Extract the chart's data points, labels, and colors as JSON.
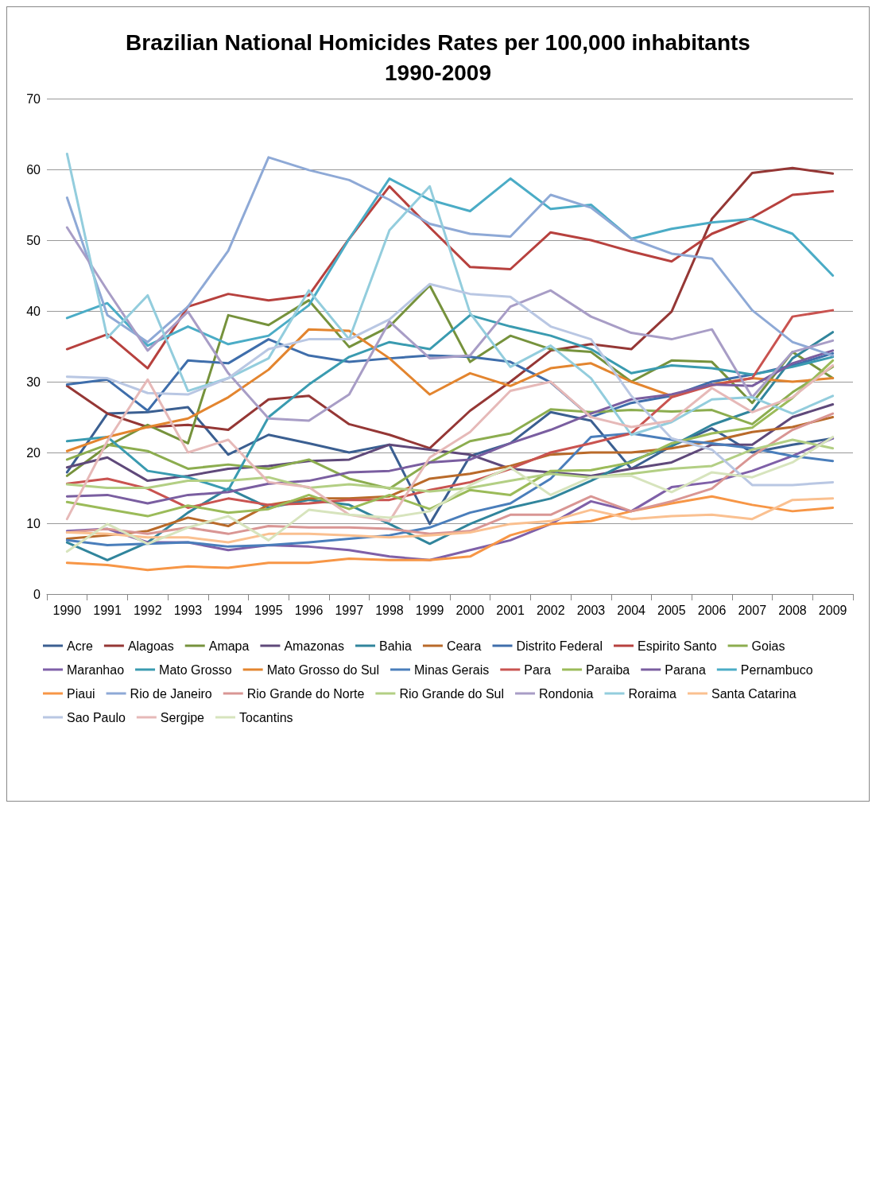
{
  "chart_data": {
    "type": "line",
    "title": "Brazilian National Homicides Rates per 100,000 inhabitants\n1990-2009",
    "categories": [
      "1990",
      "1991",
      "1992",
      "1993",
      "1994",
      "1995",
      "1996",
      "1997",
      "1998",
      "1999",
      "2000",
      "2001",
      "2002",
      "2003",
      "2004",
      "2005",
      "2006",
      "2007",
      "2008",
      "2009"
    ],
    "ylim": [
      0,
      70
    ],
    "yticks": [
      0,
      10,
      20,
      30,
      40,
      50,
      60,
      70
    ],
    "grid": "y",
    "legend": "bottom",
    "marker": "none",
    "line_style": "solid",
    "series": [
      {
        "name": "Acre",
        "color": "#3b5f91",
        "values": [
          17.2,
          25.5,
          25.7,
          26.4,
          19.7,
          22.5,
          21.3,
          20,
          21.1,
          9.9,
          19.5,
          21.3,
          25.7,
          24.5,
          17.7,
          20.9,
          23.4,
          20,
          21.1,
          22
        ]
      },
      {
        "name": "Alagoas",
        "color": "#953735",
        "values": [
          29.4,
          25.5,
          23.6,
          23.9,
          23.2,
          27.5,
          28,
          24,
          22.5,
          20.6,
          25.9,
          30,
          34.4,
          35.3,
          34.6,
          39.9,
          53,
          59.5,
          60.2,
          59.4
        ]
      },
      {
        "name": "Amapa",
        "color": "#76923c",
        "values": [
          16.7,
          20.9,
          23.9,
          21.3,
          39.4,
          38,
          41.5,
          34.9,
          37.8,
          43.6,
          32.8,
          36.5,
          34.6,
          34.2,
          30,
          33,
          32.8,
          27,
          34.2,
          30.5
        ]
      },
      {
        "name": "Amazonas",
        "color": "#5f497a",
        "values": [
          17.9,
          19.3,
          16,
          16.7,
          17.7,
          18.1,
          18.8,
          19,
          21.1,
          20.4,
          19.7,
          17.7,
          17.2,
          16.7,
          17.7,
          18.6,
          21.1,
          21.1,
          25,
          26.8
        ]
      },
      {
        "name": "Bahia",
        "color": "#31859c",
        "values": [
          7.3,
          4.8,
          7.3,
          11.5,
          14.9,
          12.2,
          13.3,
          12.6,
          9.9,
          7.1,
          9.9,
          12.2,
          13.5,
          16,
          18.8,
          20.9,
          23.9,
          25.9,
          33.3,
          37
        ]
      },
      {
        "name": "Ceara",
        "color": "#b96a2a",
        "values": [
          7.8,
          8.3,
          8.9,
          10.8,
          9.6,
          12.6,
          13.5,
          13.5,
          13.8,
          16.3,
          17,
          18.1,
          19.7,
          20,
          20,
          20.6,
          21.6,
          22.9,
          23.6,
          25
        ]
      },
      {
        "name": "Distrito Federal",
        "color": "#3f6eab",
        "values": [
          29.6,
          30.3,
          25.9,
          33,
          32.6,
          36,
          33.7,
          32.8,
          33.3,
          33.7,
          33.5,
          32.8,
          29.9,
          25,
          27,
          28,
          30,
          31,
          32.3,
          34
        ]
      },
      {
        "name": "Espirito Santo",
        "color": "#b7413e",
        "values": [
          34.6,
          36.7,
          31.9,
          40.6,
          42.4,
          41.5,
          42.2,
          50.2,
          57.6,
          51.8,
          46.2,
          45.9,
          51.1,
          50,
          48.4,
          47,
          50.9,
          53.2,
          56.4,
          56.9
        ]
      },
      {
        "name": "Goias",
        "color": "#8cad4f",
        "values": [
          19,
          21.1,
          20.2,
          17.7,
          18.3,
          17.7,
          19,
          16.3,
          14.9,
          18.6,
          21.6,
          22.7,
          26.1,
          25.7,
          26,
          25.8,
          26,
          24,
          28.5,
          32.1
        ]
      },
      {
        "name": "Maranhao",
        "color": "#7f60a8",
        "values": [
          8.9,
          9.2,
          7.3,
          7.3,
          6.2,
          6.9,
          6.7,
          6.2,
          5.3,
          4.8,
          6.2,
          7.6,
          9.9,
          13.1,
          11.7,
          15.1,
          15.8,
          17.4,
          19.5,
          22
        ]
      },
      {
        "name": "Mato Grosso",
        "color": "#3a9bb0",
        "values": [
          21.6,
          22.2,
          17.4,
          16.5,
          14.7,
          25,
          29.6,
          33.5,
          35.6,
          34.6,
          39.4,
          37.8,
          36.5,
          34.6,
          31.2,
          32.3,
          31.9,
          31,
          32.1,
          33.5
        ]
      },
      {
        "name": "Mato Grosso do Sul",
        "color": "#e3852f",
        "values": [
          20.2,
          22.2,
          23.6,
          24.8,
          27.8,
          31.7,
          37.4,
          37.2,
          33.3,
          28.2,
          31.2,
          29.4,
          31.9,
          32.6,
          30,
          28,
          29.6,
          30.5,
          30,
          30.5
        ]
      },
      {
        "name": "Minas Gerais",
        "color": "#4a7ebb",
        "values": [
          7.6,
          6.9,
          7.1,
          7.3,
          6.7,
          6.9,
          7.3,
          7.8,
          8.3,
          9.4,
          11.5,
          12.8,
          16.3,
          22.2,
          22.7,
          21.8,
          21.3,
          20.6,
          19.5,
          18.8
        ]
      },
      {
        "name": "Para",
        "color": "#c95350",
        "values": [
          15.6,
          16.3,
          14.9,
          12.2,
          13.5,
          12.6,
          12.8,
          13.3,
          13.3,
          14.7,
          15.8,
          17.7,
          20,
          21.3,
          22.7,
          27.8,
          29.5,
          30.5,
          39.2,
          40.1
        ]
      },
      {
        "name": "Paraiba",
        "color": "#9bbb59",
        "values": [
          13,
          12,
          11,
          12.5,
          11.5,
          12,
          14,
          12,
          14,
          12,
          14.7,
          14,
          17.4,
          17.5,
          18.6,
          21.3,
          22.7,
          23.5,
          27.7,
          33
        ]
      },
      {
        "name": "Parana",
        "color": "#7a5ea0",
        "values": [
          13.8,
          14,
          12.8,
          14,
          14.4,
          15.6,
          16,
          17.2,
          17.4,
          18.6,
          19,
          21.3,
          23.2,
          25.5,
          27.5,
          28.2,
          29.6,
          29.4,
          32.6,
          34.4
        ]
      },
      {
        "name": "Pernambuco",
        "color": "#4bacc6",
        "values": [
          39,
          41.1,
          35.1,
          37.8,
          35.3,
          36.5,
          40.8,
          50.2,
          58.7,
          55.7,
          54.1,
          58.7,
          54.4,
          55,
          50.2,
          51.6,
          52.5,
          53,
          50.9,
          45
        ]
      },
      {
        "name": "Piaui",
        "color": "#f79646",
        "values": [
          4.4,
          4.1,
          3.4,
          3.9,
          3.7,
          4.4,
          4.4,
          5,
          4.8,
          4.8,
          5.3,
          8.3,
          9.9,
          10.3,
          11.7,
          12.8,
          13.8,
          12.6,
          11.7,
          12.2
        ]
      },
      {
        "name": "Rio de Janeiro",
        "color": "#8ea9d6",
        "values": [
          56,
          39.4,
          35.6,
          40.6,
          48.5,
          61.7,
          59.9,
          58.5,
          55.7,
          52.3,
          50.9,
          50.5,
          56.4,
          54.6,
          50.2,
          48.1,
          47.4,
          40.1,
          35.6,
          33.7
        ]
      },
      {
        "name": "Rio Grande do Norte",
        "color": "#d99694",
        "values": [
          8.7,
          9.2,
          8.5,
          9.4,
          8.5,
          9.6,
          9.4,
          9.4,
          9.2,
          8.5,
          8.9,
          11.2,
          11.2,
          13.8,
          11.7,
          13.1,
          14.9,
          19.5,
          23.2,
          25.5
        ]
      },
      {
        "name": "Rio Grande do Sul",
        "color": "#b3cf84",
        "values": [
          15.5,
          15,
          15,
          16,
          16,
          16.5,
          15,
          15.5,
          15,
          14.5,
          15,
          16,
          17,
          16.5,
          17,
          17.7,
          18.1,
          20.4,
          21.8,
          20.6
        ]
      },
      {
        "name": "Rondonia",
        "color": "#a89dc6",
        "values": [
          51.8,
          42.9,
          34.4,
          39.9,
          31.2,
          24.8,
          24.5,
          28.2,
          38.5,
          33.3,
          33.7,
          40.6,
          42.9,
          39.2,
          36.9,
          36,
          37.4,
          27.8,
          34.2,
          35.8
        ]
      },
      {
        "name": "Roraima",
        "color": "#93cddd",
        "values": [
          62.2,
          36.2,
          42.2,
          28.7,
          30.5,
          33.3,
          42.9,
          36,
          51.4,
          57.6,
          39.7,
          32.1,
          35.1,
          30.5,
          22.5,
          24.3,
          27.5,
          27.8,
          25.5,
          28
        ]
      },
      {
        "name": "Santa Catarina",
        "color": "#fac090",
        "values": [
          8.7,
          8.5,
          8,
          8,
          7.3,
          8.5,
          8.5,
          8.3,
          8,
          8.3,
          8.7,
          9.9,
          10.3,
          11.9,
          10.6,
          11,
          11.2,
          10.6,
          13.3,
          13.5
        ]
      },
      {
        "name": "Sao Paulo",
        "color": "#b9c7e3",
        "values": [
          30.7,
          30.5,
          28.4,
          28.2,
          30.5,
          34.6,
          36,
          36,
          38.8,
          43.8,
          42.4,
          42,
          37.8,
          36,
          28,
          22,
          20.4,
          15.4,
          15.4,
          15.8
        ]
      },
      {
        "name": "Sergipe",
        "color": "#e6b9b8",
        "values": [
          10.6,
          21.6,
          30.3,
          20,
          21.8,
          15.8,
          15.1,
          11.2,
          10.3,
          19.3,
          22.9,
          28.7,
          30,
          25,
          23.6,
          24.5,
          29.1,
          25.7,
          27.8,
          32.3
        ]
      },
      {
        "name": "Tocantins",
        "color": "#d7e4bd",
        "values": [
          6,
          9.9,
          7.1,
          9.4,
          11,
          7.6,
          11.9,
          11.2,
          10.8,
          11.7,
          15.4,
          17.9,
          14,
          16.5,
          16.7,
          14.4,
          17.2,
          16.5,
          18.6,
          22.2
        ]
      }
    ]
  }
}
